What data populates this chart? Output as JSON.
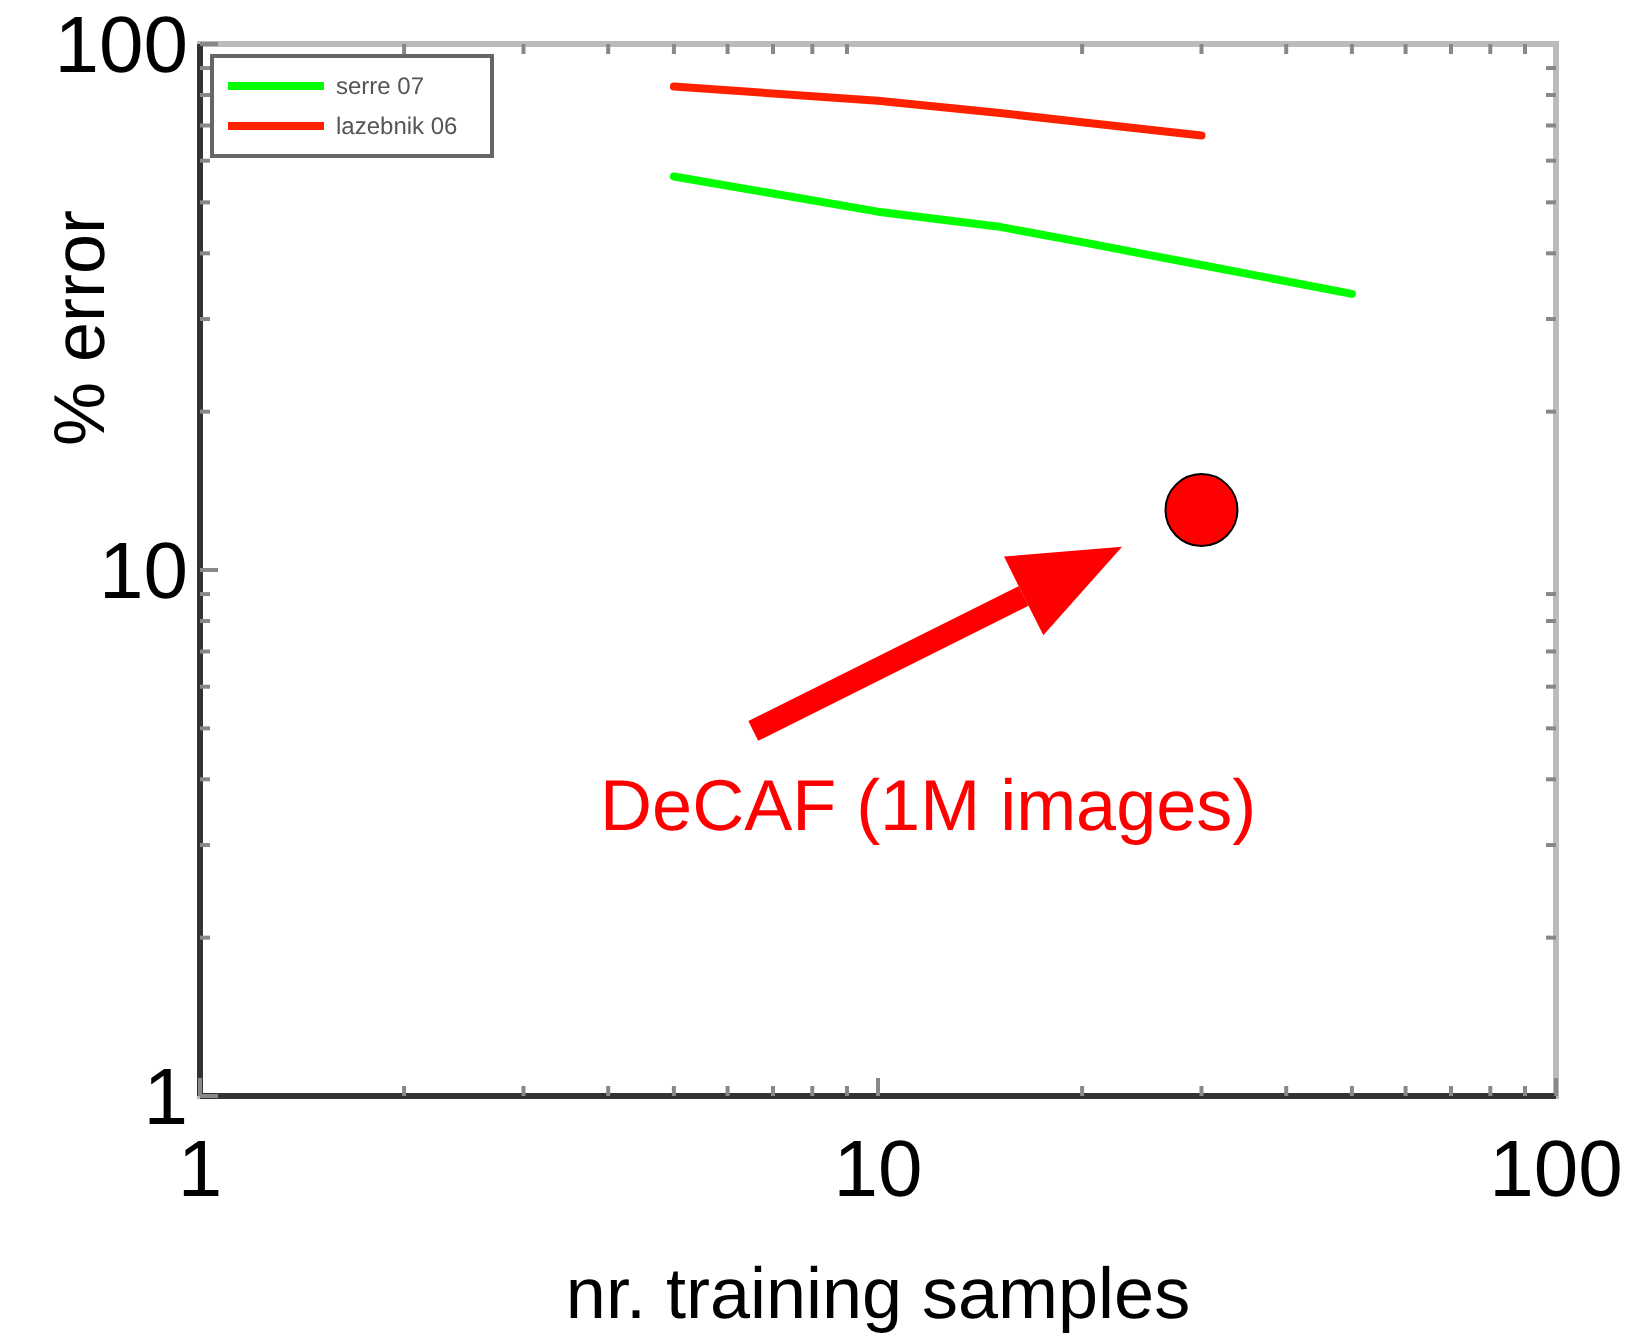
{
  "chart_data": {
    "type": "line",
    "xlabel": "nr. training samples",
    "ylabel": "% error",
    "log": "xy",
    "xlim": [
      1,
      100
    ],
    "xticks": [
      1,
      10,
      100
    ],
    "ylim": [
      1,
      100
    ],
    "yticks": [
      1,
      10,
      100
    ],
    "grid": false,
    "legend": "top left",
    "marker": "none",
    "line_style": "solid",
    "series": [
      {
        "name": "serre 07",
        "color": "#00ff00",
        "x": [
          5,
          10,
          15,
          20,
          30,
          50
        ],
        "values": [
          56,
          48,
          45,
          42,
          38,
          33.5
        ]
      },
      {
        "name": "lazebnik 06",
        "color": "#ff2000",
        "x": [
          5,
          10,
          15,
          20,
          30
        ],
        "values": [
          83,
          78,
          74,
          71,
          67
        ]
      },
      {
        "type": "scatter",
        "color": "#ff0000",
        "x": [
          30
        ],
        "values": [
          13
        ],
        "marker": "circle"
      }
    ],
    "annotations": [
      "DeCAF (1M images)"
    ]
  }
}
